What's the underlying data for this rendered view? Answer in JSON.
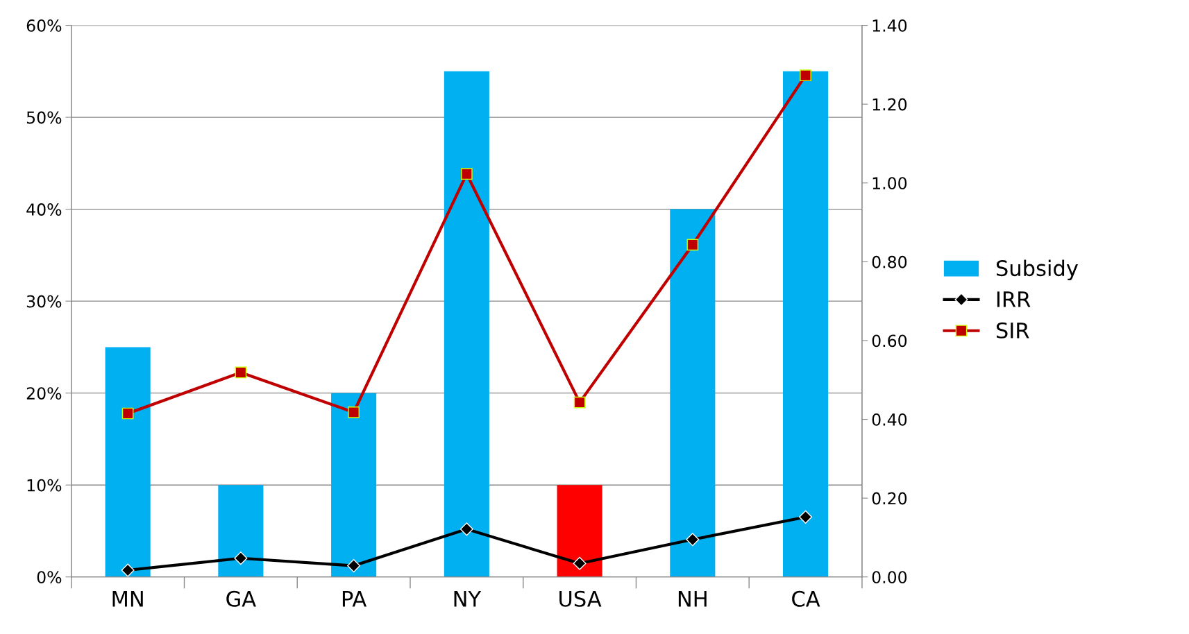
{
  "chart_data": {
    "type": "bar",
    "categories": [
      "MN",
      "GA",
      "PA",
      "NY",
      "USA",
      "NH",
      "CA"
    ],
    "series": [
      {
        "name": "Subsidy",
        "color": "#00b0f0",
        "colors": [
          "#00b0f0",
          "#00b0f0",
          "#00b0f0",
          "#00b0f0",
          "#ff0000",
          "#00b0f0",
          "#00b0f0"
        ],
        "values": [
          25,
          10,
          20,
          55,
          10,
          40,
          55
        ]
      },
      {
        "name": "IRR",
        "type": "line",
        "color": "#000000",
        "marker": "diamond",
        "values": [
          0.73,
          2.04,
          1.22,
          5.2,
          1.47,
          4.07,
          6.52
        ]
      },
      {
        "name": "SIR",
        "type": "line",
        "color": "#c00000",
        "marker": "square",
        "axis": "y2",
        "values": [
          0.415,
          0.519,
          0.418,
          1.023,
          0.443,
          0.843,
          1.273
        ]
      }
    ],
    "ylim": [
      0,
      60
    ],
    "yticks": [
      {
        "value": 0,
        "label": "0%"
      },
      {
        "value": 10,
        "label": "10%"
      },
      {
        "value": 20,
        "label": "20%"
      },
      {
        "value": 30,
        "label": "30%"
      },
      {
        "value": 40,
        "label": "40%"
      },
      {
        "value": 50,
        "label": "50%"
      },
      {
        "value": 60,
        "label": "60%"
      }
    ],
    "y2lim": [
      0,
      1.4
    ],
    "y2ticks": [
      {
        "value": 0,
        "label": "0.00"
      },
      {
        "value": 0.2,
        "label": "0.20"
      },
      {
        "value": 0.4,
        "label": "0.40"
      },
      {
        "value": 0.6,
        "label": "0.60"
      },
      {
        "value": 0.8,
        "label": "0.80"
      },
      {
        "value": 1.0,
        "label": "1.00"
      },
      {
        "value": 1.2,
        "label": "1.20"
      },
      {
        "value": 1.4,
        "label": "1.40"
      }
    ],
    "grid": "y",
    "legend": "right"
  }
}
